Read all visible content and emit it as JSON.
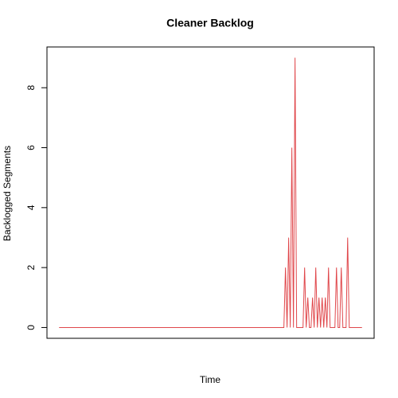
{
  "chart_data": {
    "type": "line",
    "title": "Cleaner Backlog",
    "xlabel": "Time",
    "ylabel": "Backlogged Segments",
    "color": "#e0484c",
    "x": [
      0,
      141,
      142,
      143,
      144,
      145,
      146,
      147,
      148,
      149,
      153,
      154,
      155,
      156,
      157,
      158,
      159,
      160,
      161,
      162,
      163,
      164,
      165,
      166,
      167,
      168,
      169,
      170,
      173,
      174,
      175,
      176,
      177,
      178,
      180,
      181,
      182,
      190
    ],
    "values": [
      0,
      0,
      2,
      0,
      3,
      0,
      6,
      0,
      9,
      0,
      0,
      2,
      0,
      1,
      0,
      0,
      1,
      0,
      2,
      0,
      1,
      0,
      1,
      0,
      1,
      0,
      2,
      0,
      0,
      2,
      0,
      0,
      2,
      0,
      0,
      3,
      0,
      0
    ],
    "xlim": [
      -7.6,
      197.6
    ],
    "ylim": [
      -0.36,
      9.36
    ],
    "yticks": [
      0,
      2,
      4,
      6,
      8
    ]
  }
}
